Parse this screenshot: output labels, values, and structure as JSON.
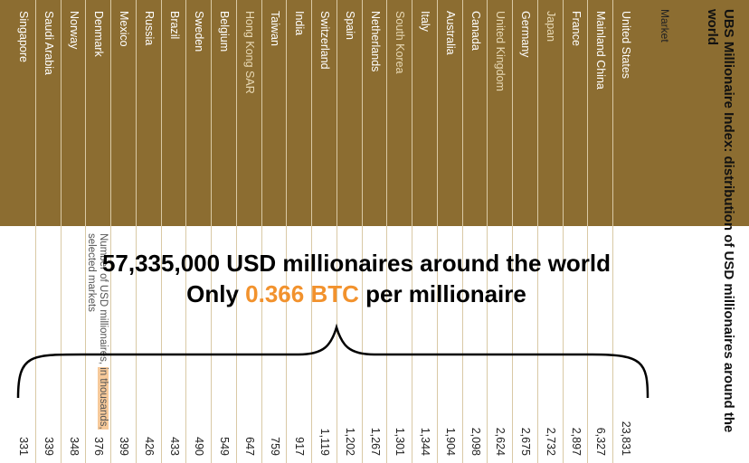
{
  "title": "UBS Millionaire Index: distribution of USD millionaires around the world",
  "market_header": "Market",
  "number_header": {
    "part1": "Number of USD millionaires,",
    "part2": "in thousands,",
    "part3": "selected markets"
  },
  "overlay": {
    "line1": "57,335,000 USD millionaires around the world",
    "line2_prefix": "Only",
    "line2_highlight": "0.366 BTC",
    "line2_suffix": "per millionaire"
  },
  "colors": {
    "band": "#8c6d31",
    "btc": "#f2922d",
    "highlight": "#f6c99a"
  },
  "rows": [
    {
      "market": "United States",
      "value": "23,831",
      "light": false
    },
    {
      "market": "Mainland China",
      "value": "6,327",
      "light": false
    },
    {
      "market": "France",
      "value": "2,897",
      "light": false
    },
    {
      "market": "Japan",
      "value": "2,732",
      "light": true
    },
    {
      "market": "Germany",
      "value": "2,675",
      "light": false
    },
    {
      "market": "United Kingdom",
      "value": "2,624",
      "light": true
    },
    {
      "market": "Canada",
      "value": "2,098",
      "light": false
    },
    {
      "market": "Australia",
      "value": "1,904",
      "light": false
    },
    {
      "market": "Italy",
      "value": "1,344",
      "light": false
    },
    {
      "market": "South Korea",
      "value": "1,301",
      "light": true
    },
    {
      "market": "Netherlands",
      "value": "1,267",
      "light": false
    },
    {
      "market": "Spain",
      "value": "1,202",
      "light": false
    },
    {
      "market": "Switzerland",
      "value": "1,119",
      "light": false
    },
    {
      "market": "India",
      "value": "917",
      "light": false
    },
    {
      "market": "Taiwan",
      "value": "759",
      "light": false
    },
    {
      "market": "Hong Kong SAR",
      "value": "647",
      "light": true
    },
    {
      "market": "Belgium",
      "value": "549",
      "light": false
    },
    {
      "market": "Sweden",
      "value": "490",
      "light": false
    },
    {
      "market": "Brazil",
      "value": "433",
      "light": false
    },
    {
      "market": "Russia",
      "value": "426",
      "light": false
    },
    {
      "market": "Mexico",
      "value": "399",
      "light": false
    },
    {
      "market": "Denmark",
      "value": "376",
      "light": false
    },
    {
      "market": "Norway",
      "value": "348",
      "light": false
    },
    {
      "market": "Saudi Arabia",
      "value": "339",
      "light": false
    },
    {
      "market": "Singapore",
      "value": "331",
      "light": false
    }
  ]
}
